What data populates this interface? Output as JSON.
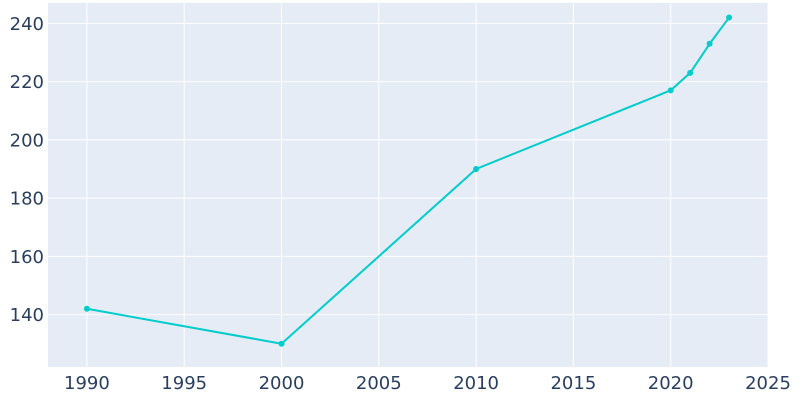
{
  "chart_data": {
    "type": "line",
    "title": "",
    "xlabel": "",
    "ylabel": "",
    "x": [
      1990,
      2000,
      2010,
      2020,
      2021,
      2022,
      2023
    ],
    "series": [
      {
        "values": [
          142,
          130,
          190,
          217,
          223,
          233,
          242
        ]
      }
    ],
    "xlim": [
      1988,
      2025
    ],
    "ylim": [
      122,
      247
    ],
    "xticks": [
      1990,
      1995,
      2000,
      2005,
      2010,
      2015,
      2020,
      2025
    ],
    "yticks": [
      140,
      160,
      180,
      200,
      220,
      240
    ],
    "grid": true,
    "legend": "none",
    "colors": {
      "plot_background": "#e5ecf6",
      "grid": "#ffffff",
      "line": "#00cccc",
      "tick_text": "#2a3f5f"
    }
  }
}
